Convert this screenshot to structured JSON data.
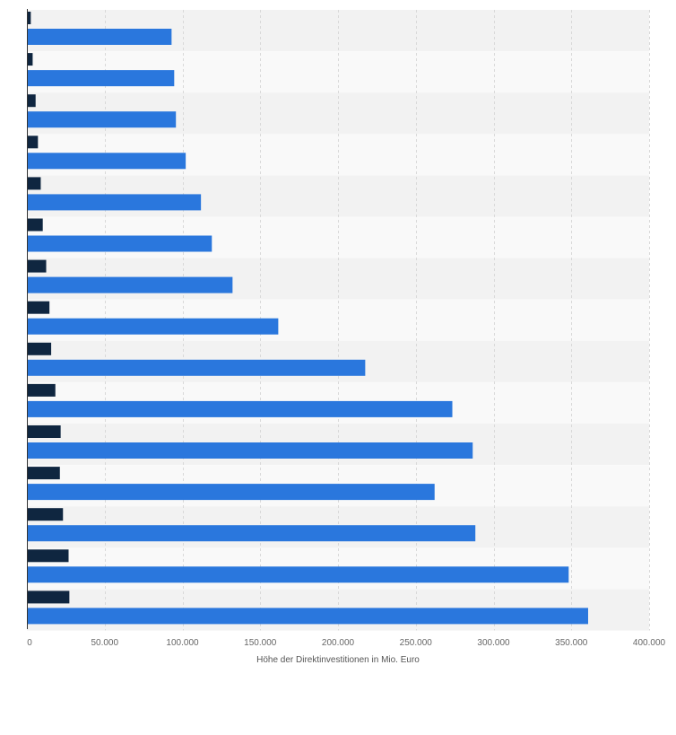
{
  "chart_data": {
    "type": "bar",
    "orientation": "horizontal",
    "title": "",
    "xlabel": "Höhe der Direktinvestitionen in Mio. Euro",
    "ylabel": "",
    "xlim": [
      0,
      400000
    ],
    "x_ticks": [
      0,
      50000,
      100000,
      150000,
      200000,
      250000,
      300000,
      350000,
      400000
    ],
    "x_tick_labels": [
      "0",
      "50.000",
      "100.000",
      "150.000",
      "200.000",
      "250.000",
      "300.000",
      "350.000",
      "400.000"
    ],
    "categories": [
      "",
      "",
      "",
      "",
      "",
      "",
      "",
      "",
      "",
      "",
      "",
      "",
      "",
      "",
      ""
    ],
    "grid": true,
    "legend": "none",
    "series": [
      {
        "color": "#0f2640",
        "values": [
          2500,
          3700,
          5600,
          7100,
          8900,
          10200,
          12400,
          14500,
          15600,
          18300,
          21700,
          21200,
          23200,
          26800,
          27300
        ]
      },
      {
        "color": "#2a77dd",
        "values": [
          93000,
          94700,
          95800,
          102100,
          111900,
          118900,
          132200,
          161600,
          217500,
          273500,
          286600,
          262100,
          288300,
          348300,
          360800
        ]
      }
    ]
  }
}
